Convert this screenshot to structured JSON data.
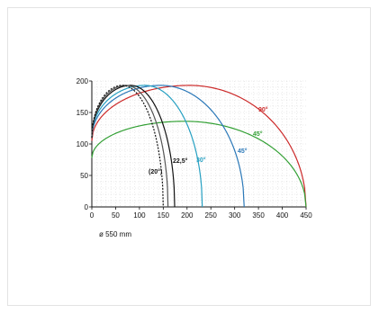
{
  "chart_data": {
    "type": "line",
    "xlim": [
      0,
      450
    ],
    "ylim": [
      0,
      200
    ],
    "x_ticks": [
      "0",
      "50",
      "100",
      "150",
      "200",
      "250",
      "300",
      "350",
      "400",
      "450"
    ],
    "y_ticks": [
      "0",
      "50",
      "100",
      "150",
      "200"
    ],
    "grid": true,
    "caption": "ø 550 mm",
    "series": [
      {
        "name": "90°",
        "color": "#cc2a2a",
        "dash": "",
        "x0": 0,
        "y0": 105,
        "x_peak": 205,
        "y_peak": 193,
        "x_end": 450,
        "y_end": 0
      },
      {
        "name": "45°",
        "color": "#33a035",
        "dash": "",
        "x0": 0,
        "y0": 78,
        "x_peak": 195,
        "y_peak": 136,
        "x_end": 450,
        "y_end": 0
      },
      {
        "name": "45°",
        "color": "#2b78b8",
        "dash": "",
        "x0": 0,
        "y0": 110,
        "x_peak": 145,
        "y_peak": 193,
        "x_end": 320,
        "y_end": 0
      },
      {
        "name": "30°",
        "color": "#26a0c2",
        "dash": "",
        "x0": 0,
        "y0": 112,
        "x_peak": 112,
        "y_peak": 193,
        "x_end": 232,
        "y_end": 0
      },
      {
        "name": "22,5°",
        "color": "#111111",
        "dash": "",
        "x0": 0,
        "y0": 110,
        "x_peak": 82,
        "y_peak": 193,
        "x_end": 174,
        "y_end": 0
      },
      {
        "name": "",
        "color": "#555555",
        "dash": "",
        "x0": 0,
        "y0": 110,
        "x_peak": 72,
        "y_peak": 193,
        "x_end": 160,
        "y_end": 0
      },
      {
        "name": "(20°)",
        "color": "#111111",
        "dash": "2,1.5",
        "x0": 0,
        "y0": 110,
        "x_peak": 64,
        "y_peak": 193,
        "x_end": 150,
        "y_end": 0
      }
    ]
  }
}
